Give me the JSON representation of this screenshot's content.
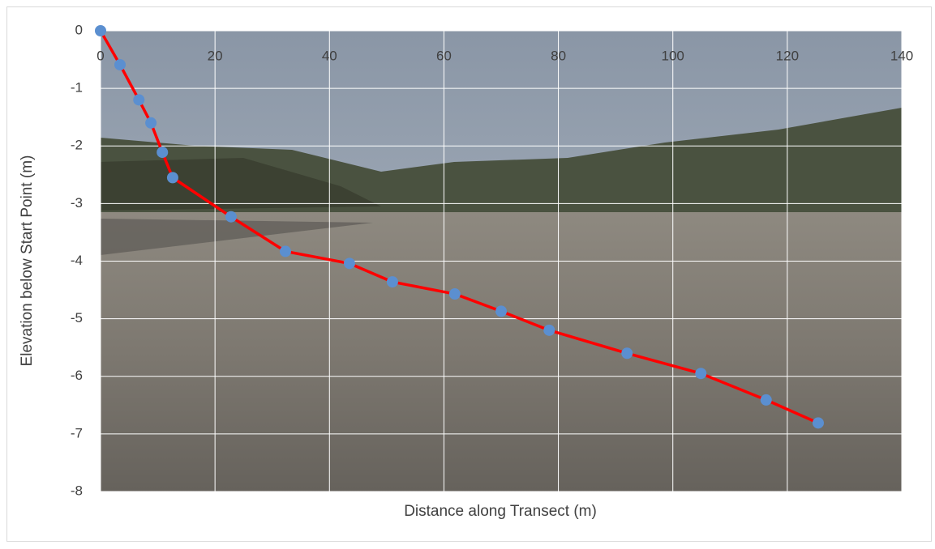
{
  "chart_data": {
    "type": "scatter",
    "x_label": "Distance along Transect (m)",
    "y_label": "Elevation below Start Point (m)",
    "x": [
      0,
      3.4,
      6.7,
      8.8,
      10.8,
      12.6,
      22.8,
      32.3,
      43.5,
      51.0,
      61.9,
      70.0,
      78.4,
      92.0,
      104.9,
      116.3,
      125.4
    ],
    "series": [
      {
        "color": "#ff0000",
        "marker_color": "#5b8fd0",
        "values": [
          0,
          -0.59,
          -1.2,
          -1.6,
          -2.11,
          -2.55,
          -3.23,
          -3.83,
          -4.04,
          -4.36,
          -4.57,
          -4.87,
          -5.2,
          -5.6,
          -5.95,
          -6.41,
          -6.81
        ]
      }
    ],
    "xlim": [
      0,
      140
    ],
    "xticks": [
      0,
      20,
      40,
      60,
      80,
      100,
      120,
      140
    ],
    "ylim": [
      -8,
      0
    ],
    "yticks": [
      0,
      -1,
      -2,
      -3,
      -4,
      -5,
      -6,
      -7,
      -8
    ],
    "grid": true,
    "grid_color": "#ffffff"
  }
}
